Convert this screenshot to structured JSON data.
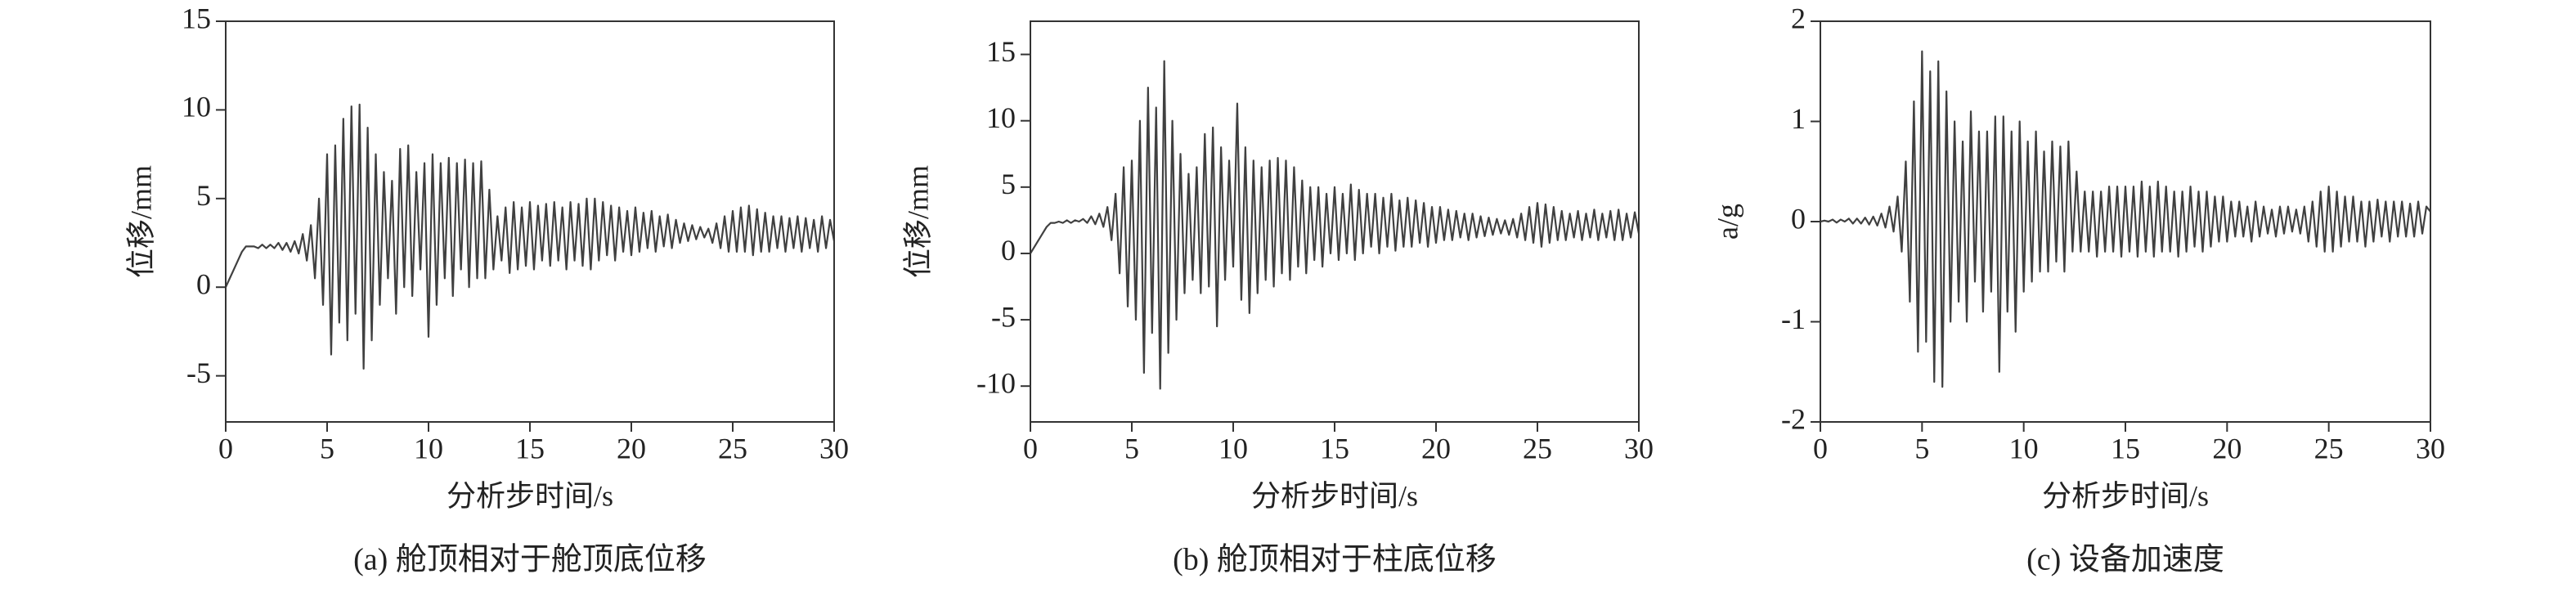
{
  "chart_data": [
    {
      "type": "line",
      "caption": "(a) 舱顶相对于舱顶底位移",
      "xlabel": "分析步时间/s",
      "ylabel": "位移/mm",
      "xlim": [
        0,
        30
      ],
      "xticks": [
        0,
        5,
        10,
        15,
        20,
        25,
        30
      ],
      "ylim": [
        -7.6,
        15
      ],
      "yticks": [
        -5,
        0,
        5,
        10,
        15
      ],
      "color": "#404040",
      "x": [
        0,
        0.2,
        0.4,
        0.6,
        0.8,
        1,
        1.2,
        1.4,
        1.6,
        1.8,
        2,
        2.2,
        2.4,
        2.6,
        2.8,
        3,
        3.2,
        3.4,
        3.6,
        3.8,
        4,
        4.2,
        4.4,
        4.6,
        4.8,
        5,
        5.2,
        5.4,
        5.6,
        5.8,
        6,
        6.2,
        6.4,
        6.6,
        6.8,
        7,
        7.2,
        7.4,
        7.6,
        7.8,
        8,
        8.2,
        8.4,
        8.6,
        8.8,
        9,
        9.2,
        9.4,
        9.6,
        9.8,
        10,
        10.2,
        10.4,
        10.6,
        10.8,
        11,
        11.2,
        11.4,
        11.6,
        11.8,
        12,
        12.2,
        12.4,
        12.6,
        12.8,
        13,
        13.2,
        13.4,
        13.6,
        13.8,
        14,
        14.2,
        14.4,
        14.6,
        14.8,
        15,
        15.2,
        15.4,
        15.6,
        15.8,
        16,
        16.2,
        16.4,
        16.6,
        16.8,
        17,
        17.2,
        17.4,
        17.6,
        17.8,
        18,
        18.2,
        18.4,
        18.6,
        18.8,
        19,
        19.2,
        19.4,
        19.6,
        19.8,
        20,
        20.2,
        20.4,
        20.6,
        20.8,
        21,
        21.2,
        21.4,
        21.6,
        21.8,
        22,
        22.2,
        22.4,
        22.6,
        22.8,
        23,
        23.2,
        23.4,
        23.6,
        23.8,
        24,
        24.2,
        24.4,
        24.6,
        24.8,
        25,
        25.2,
        25.4,
        25.6,
        25.8,
        26,
        26.2,
        26.4,
        26.6,
        26.8,
        27,
        27.2,
        27.4,
        27.6,
        27.8,
        28,
        28.2,
        28.4,
        28.6,
        28.8,
        29,
        29.2,
        29.4,
        29.6,
        29.8,
        30
      ],
      "values": [
        0,
        0.5,
        1.0,
        1.5,
        2.0,
        2.3,
        2.3,
        2.3,
        2.2,
        2.4,
        2.2,
        2.4,
        2.2,
        2.5,
        2.1,
        2.5,
        2.0,
        2.6,
        1.9,
        3.0,
        1.5,
        3.5,
        0.5,
        5.0,
        -1.0,
        7.5,
        -3.8,
        8.0,
        -2.0,
        9.5,
        -3.0,
        10.2,
        -1.5,
        10.3,
        -4.6,
        9.0,
        -3.0,
        7.5,
        -1.0,
        6.5,
        0.5,
        6.0,
        -1.5,
        7.8,
        0.0,
        8.0,
        -0.5,
        6.5,
        1.0,
        7.0,
        -2.8,
        7.5,
        -1.0,
        7.0,
        0.5,
        7.3,
        -0.5,
        7.0,
        1.0,
        7.2,
        0.0,
        7.0,
        0.5,
        7.1,
        0.5,
        5.5,
        1.0,
        4.0,
        1.5,
        4.5,
        0.8,
        4.8,
        1.0,
        4.5,
        1.2,
        4.8,
        1.0,
        4.6,
        1.5,
        4.7,
        1.2,
        4.8,
        1.5,
        4.5,
        1.0,
        4.8,
        1.5,
        4.7,
        1.2,
        5.0,
        1.0,
        5.0,
        1.5,
        4.8,
        1.8,
        4.6,
        1.5,
        4.5,
        2.0,
        4.3,
        1.8,
        4.5,
        2.0,
        4.2,
        2.2,
        4.3,
        2.0,
        4.0,
        2.3,
        4.1,
        2.2,
        3.8,
        2.5,
        3.6,
        2.6,
        3.5,
        2.7,
        3.4,
        2.8,
        3.3,
        2.5,
        3.6,
        2.2,
        4.0,
        2.0,
        4.3,
        2.0,
        4.5,
        2.0,
        4.6,
        1.8,
        4.4,
        2.0,
        4.2,
        2.0,
        4.0,
        2.2,
        4.0,
        2.0,
        3.9,
        2.2,
        4.0,
        2.0,
        3.9,
        2.2,
        3.8,
        2.0,
        4.0,
        2.2,
        3.8,
        2.6
      ]
    },
    {
      "type": "line",
      "caption": "(b) 舱顶相对于柱底位移",
      "xlabel": "分析步时间/s",
      "ylabel": "位移/mm",
      "xlim": [
        0,
        30
      ],
      "xticks": [
        0,
        5,
        10,
        15,
        20,
        25,
        30
      ],
      "ylim": [
        -12.7,
        17.5
      ],
      "yticks": [
        -10,
        -5,
        0,
        5,
        10,
        15
      ],
      "color": "#404040",
      "x": [
        0,
        0.2,
        0.4,
        0.6,
        0.8,
        1,
        1.2,
        1.4,
        1.6,
        1.8,
        2,
        2.2,
        2.4,
        2.6,
        2.8,
        3,
        3.2,
        3.4,
        3.6,
        3.8,
        4,
        4.2,
        4.4,
        4.6,
        4.8,
        5,
        5.2,
        5.4,
        5.6,
        5.8,
        6,
        6.2,
        6.4,
        6.6,
        6.8,
        7,
        7.2,
        7.4,
        7.6,
        7.8,
        8,
        8.2,
        8.4,
        8.6,
        8.8,
        9,
        9.2,
        9.4,
        9.6,
        9.8,
        10,
        10.2,
        10.4,
        10.6,
        10.8,
        11,
        11.2,
        11.4,
        11.6,
        11.8,
        12,
        12.2,
        12.4,
        12.6,
        12.8,
        13,
        13.2,
        13.4,
        13.6,
        13.8,
        14,
        14.2,
        14.4,
        14.6,
        14.8,
        15,
        15.2,
        15.4,
        15.6,
        15.8,
        16,
        16.2,
        16.4,
        16.6,
        16.8,
        17,
        17.2,
        17.4,
        17.6,
        17.8,
        18,
        18.2,
        18.4,
        18.6,
        18.8,
        19,
        19.2,
        19.4,
        19.6,
        19.8,
        20,
        20.2,
        20.4,
        20.6,
        20.8,
        21,
        21.2,
        21.4,
        21.6,
        21.8,
        22,
        22.2,
        22.4,
        22.6,
        22.8,
        23,
        23.2,
        23.4,
        23.6,
        23.8,
        24,
        24.2,
        24.4,
        24.6,
        24.8,
        25,
        25.2,
        25.4,
        25.6,
        25.8,
        26,
        26.2,
        26.4,
        26.6,
        26.8,
        27,
        27.2,
        27.4,
        27.6,
        27.8,
        28,
        28.2,
        28.4,
        28.6,
        28.8,
        29,
        29.2,
        29.4,
        29.6,
        29.8,
        30
      ],
      "values": [
        0,
        0.5,
        1.0,
        1.5,
        2.0,
        2.3,
        2.3,
        2.4,
        2.3,
        2.5,
        2.3,
        2.5,
        2.4,
        2.6,
        2.3,
        2.8,
        2.2,
        3.0,
        2.0,
        3.5,
        1.0,
        4.5,
        -1.5,
        6.5,
        -4.0,
        7.0,
        -5.0,
        10.0,
        -9.0,
        12.5,
        -6.0,
        11.0,
        -10.2,
        14.5,
        -7.5,
        10.0,
        -5.0,
        7.5,
        -3.0,
        6.0,
        -2.0,
        6.5,
        -3.0,
        9.0,
        -2.5,
        9.5,
        -5.5,
        8.0,
        -2.0,
        7.0,
        -1.0,
        11.3,
        -3.5,
        8.0,
        -4.5,
        7.0,
        -3.0,
        6.5,
        -2.0,
        7.0,
        -2.5,
        7.2,
        -1.5,
        7.0,
        -2.0,
        6.5,
        -1.0,
        5.5,
        -1.5,
        5.0,
        -0.5,
        5.0,
        -1.0,
        4.5,
        0.0,
        5.0,
        -0.5,
        4.5,
        0.0,
        5.2,
        -0.5,
        4.8,
        0.0,
        4.5,
        0.5,
        4.5,
        0.0,
        4.2,
        0.5,
        4.5,
        0.2,
        4.0,
        0.5,
        4.2,
        0.5,
        4.0,
        0.8,
        3.8,
        0.5,
        3.5,
        0.8,
        3.5,
        1.0,
        3.3,
        1.0,
        3.2,
        1.2,
        3.0,
        1.0,
        3.0,
        1.2,
        2.8,
        1.3,
        2.7,
        1.4,
        2.6,
        1.5,
        2.5,
        1.4,
        2.6,
        1.2,
        3.0,
        1.0,
        3.5,
        0.8,
        3.8,
        0.5,
        3.7,
        0.8,
        3.5,
        1.0,
        3.2,
        1.0,
        3.0,
        1.2,
        3.2,
        1.0,
        3.0,
        1.2,
        3.3,
        1.0,
        3.0,
        1.2,
        3.2,
        1.0,
        3.3,
        1.0,
        3.0,
        1.2,
        3.1,
        1.5
      ]
    },
    {
      "type": "line",
      "caption": "(c) 设备加速度",
      "xlabel": "分析步时间/s",
      "ylabel": "a/g",
      "xlim": [
        0,
        30
      ],
      "xticks": [
        0,
        5,
        10,
        15,
        20,
        25,
        30
      ],
      "ylim": [
        -2,
        2
      ],
      "yticks": [
        -2,
        -1,
        0,
        1,
        2
      ],
      "color": "#404040",
      "x": [
        0,
        0.2,
        0.4,
        0.6,
        0.8,
        1,
        1.2,
        1.4,
        1.6,
        1.8,
        2,
        2.2,
        2.4,
        2.6,
        2.8,
        3,
        3.2,
        3.4,
        3.6,
        3.8,
        4,
        4.2,
        4.4,
        4.6,
        4.8,
        5,
        5.2,
        5.4,
        5.6,
        5.8,
        6,
        6.2,
        6.4,
        6.6,
        6.8,
        7,
        7.2,
        7.4,
        7.6,
        7.8,
        8,
        8.2,
        8.4,
        8.6,
        8.8,
        9,
        9.2,
        9.4,
        9.6,
        9.8,
        10,
        10.2,
        10.4,
        10.6,
        10.8,
        11,
        11.2,
        11.4,
        11.6,
        11.8,
        12,
        12.2,
        12.4,
        12.6,
        12.8,
        13,
        13.2,
        13.4,
        13.6,
        13.8,
        14,
        14.2,
        14.4,
        14.6,
        14.8,
        15,
        15.2,
        15.4,
        15.6,
        15.8,
        16,
        16.2,
        16.4,
        16.6,
        16.8,
        17,
        17.2,
        17.4,
        17.6,
        17.8,
        18,
        18.2,
        18.4,
        18.6,
        18.8,
        19,
        19.2,
        19.4,
        19.6,
        19.8,
        20,
        20.2,
        20.4,
        20.6,
        20.8,
        21,
        21.2,
        21.4,
        21.6,
        21.8,
        22,
        22.2,
        22.4,
        22.6,
        22.8,
        23,
        23.2,
        23.4,
        23.6,
        23.8,
        24,
        24.2,
        24.4,
        24.6,
        24.8,
        25,
        25.2,
        25.4,
        25.6,
        25.8,
        26,
        26.2,
        26.4,
        26.6,
        26.8,
        27,
        27.2,
        27.4,
        27.6,
        27.8,
        28,
        28.2,
        28.4,
        28.6,
        28.8,
        29,
        29.2,
        29.4,
        29.6,
        29.8,
        30
      ],
      "values": [
        0,
        0.01,
        0,
        0.02,
        -0.01,
        0.02,
        0,
        0.03,
        -0.02,
        0.03,
        -0.02,
        0.04,
        -0.03,
        0.05,
        -0.04,
        0.08,
        -0.06,
        0.15,
        -0.1,
        0.25,
        -0.3,
        0.6,
        -0.8,
        1.2,
        -1.3,
        1.7,
        -1.2,
        1.5,
        -1.6,
        1.6,
        -1.65,
        1.3,
        -1.0,
        1.0,
        -0.8,
        0.8,
        -1.0,
        1.1,
        -0.6,
        0.9,
        -0.9,
        0.9,
        -0.7,
        1.05,
        -1.5,
        1.05,
        -0.9,
        0.9,
        -1.1,
        1.0,
        -0.7,
        0.8,
        -0.6,
        0.9,
        -0.5,
        0.7,
        -0.5,
        0.8,
        -0.4,
        0.75,
        -0.5,
        0.8,
        -0.3,
        0.5,
        -0.3,
        0.3,
        -0.3,
        0.3,
        -0.35,
        0.3,
        -0.3,
        0.35,
        -0.3,
        0.35,
        -0.35,
        0.35,
        -0.3,
        0.35,
        -0.35,
        0.4,
        -0.3,
        0.35,
        -0.35,
        0.4,
        -0.3,
        0.35,
        -0.3,
        0.3,
        -0.35,
        0.3,
        -0.3,
        0.35,
        -0.25,
        0.3,
        -0.3,
        0.3,
        -0.25,
        0.25,
        -0.2,
        0.25,
        -0.2,
        0.2,
        -0.15,
        0.2,
        -0.15,
        0.15,
        -0.2,
        0.2,
        -0.15,
        0.15,
        -0.12,
        0.12,
        -0.15,
        0.15,
        -0.12,
        0.15,
        -0.1,
        0.12,
        -0.12,
        0.15,
        -0.2,
        0.2,
        -0.25,
        0.3,
        -0.3,
        0.35,
        -0.3,
        0.3,
        -0.25,
        0.25,
        -0.2,
        0.25,
        -0.2,
        0.2,
        -0.25,
        0.2,
        -0.2,
        0.22,
        -0.15,
        0.2,
        -0.2,
        0.2,
        -0.15,
        0.2,
        -0.15,
        0.18,
        -0.15,
        0.2,
        -0.12,
        0.15,
        0.1
      ]
    }
  ]
}
